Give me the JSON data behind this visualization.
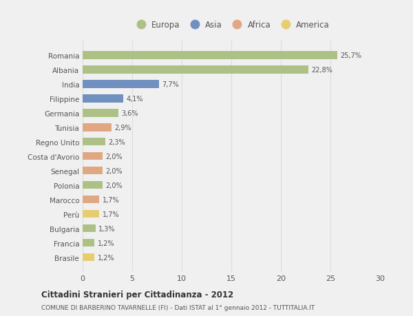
{
  "countries": [
    "Romania",
    "Albania",
    "India",
    "Filippine",
    "Germania",
    "Tunisia",
    "Regno Unito",
    "Costa d'Avorio",
    "Senegal",
    "Polonia",
    "Marocco",
    "Perù",
    "Bulgaria",
    "Francia",
    "Brasile"
  ],
  "values": [
    25.7,
    22.8,
    7.7,
    4.1,
    3.6,
    2.9,
    2.3,
    2.0,
    2.0,
    2.0,
    1.7,
    1.7,
    1.3,
    1.2,
    1.2
  ],
  "labels": [
    "25,7%",
    "22,8%",
    "7,7%",
    "4,1%",
    "3,6%",
    "2,9%",
    "2,3%",
    "2,0%",
    "2,0%",
    "2,0%",
    "1,7%",
    "1,7%",
    "1,3%",
    "1,2%",
    "1,2%"
  ],
  "colors": [
    "#adc187",
    "#adc187",
    "#7090c0",
    "#7090c0",
    "#adc187",
    "#dfa882",
    "#adc187",
    "#dfa882",
    "#dfa882",
    "#adc187",
    "#dfa882",
    "#e8cc70",
    "#adc187",
    "#adc187",
    "#e8cc70"
  ],
  "legend_labels": [
    "Europa",
    "Asia",
    "Africa",
    "America"
  ],
  "legend_colors": [
    "#adc187",
    "#7090c0",
    "#dfa882",
    "#e8cc70"
  ],
  "xlim": [
    0,
    30
  ],
  "xticks": [
    0,
    5,
    10,
    15,
    20,
    25,
    30
  ],
  "title": "Cittadini Stranieri per Cittadinanza - 2012",
  "subtitle": "COMUNE DI BARBERINO TAVARNELLE (FI) - Dati ISTAT al 1° gennaio 2012 - TUTTITALIA.IT",
  "background_color": "#f0f0f0",
  "plot_bg_color": "#f0f0f0",
  "grid_color": "#dddddd",
  "text_color": "#555555"
}
